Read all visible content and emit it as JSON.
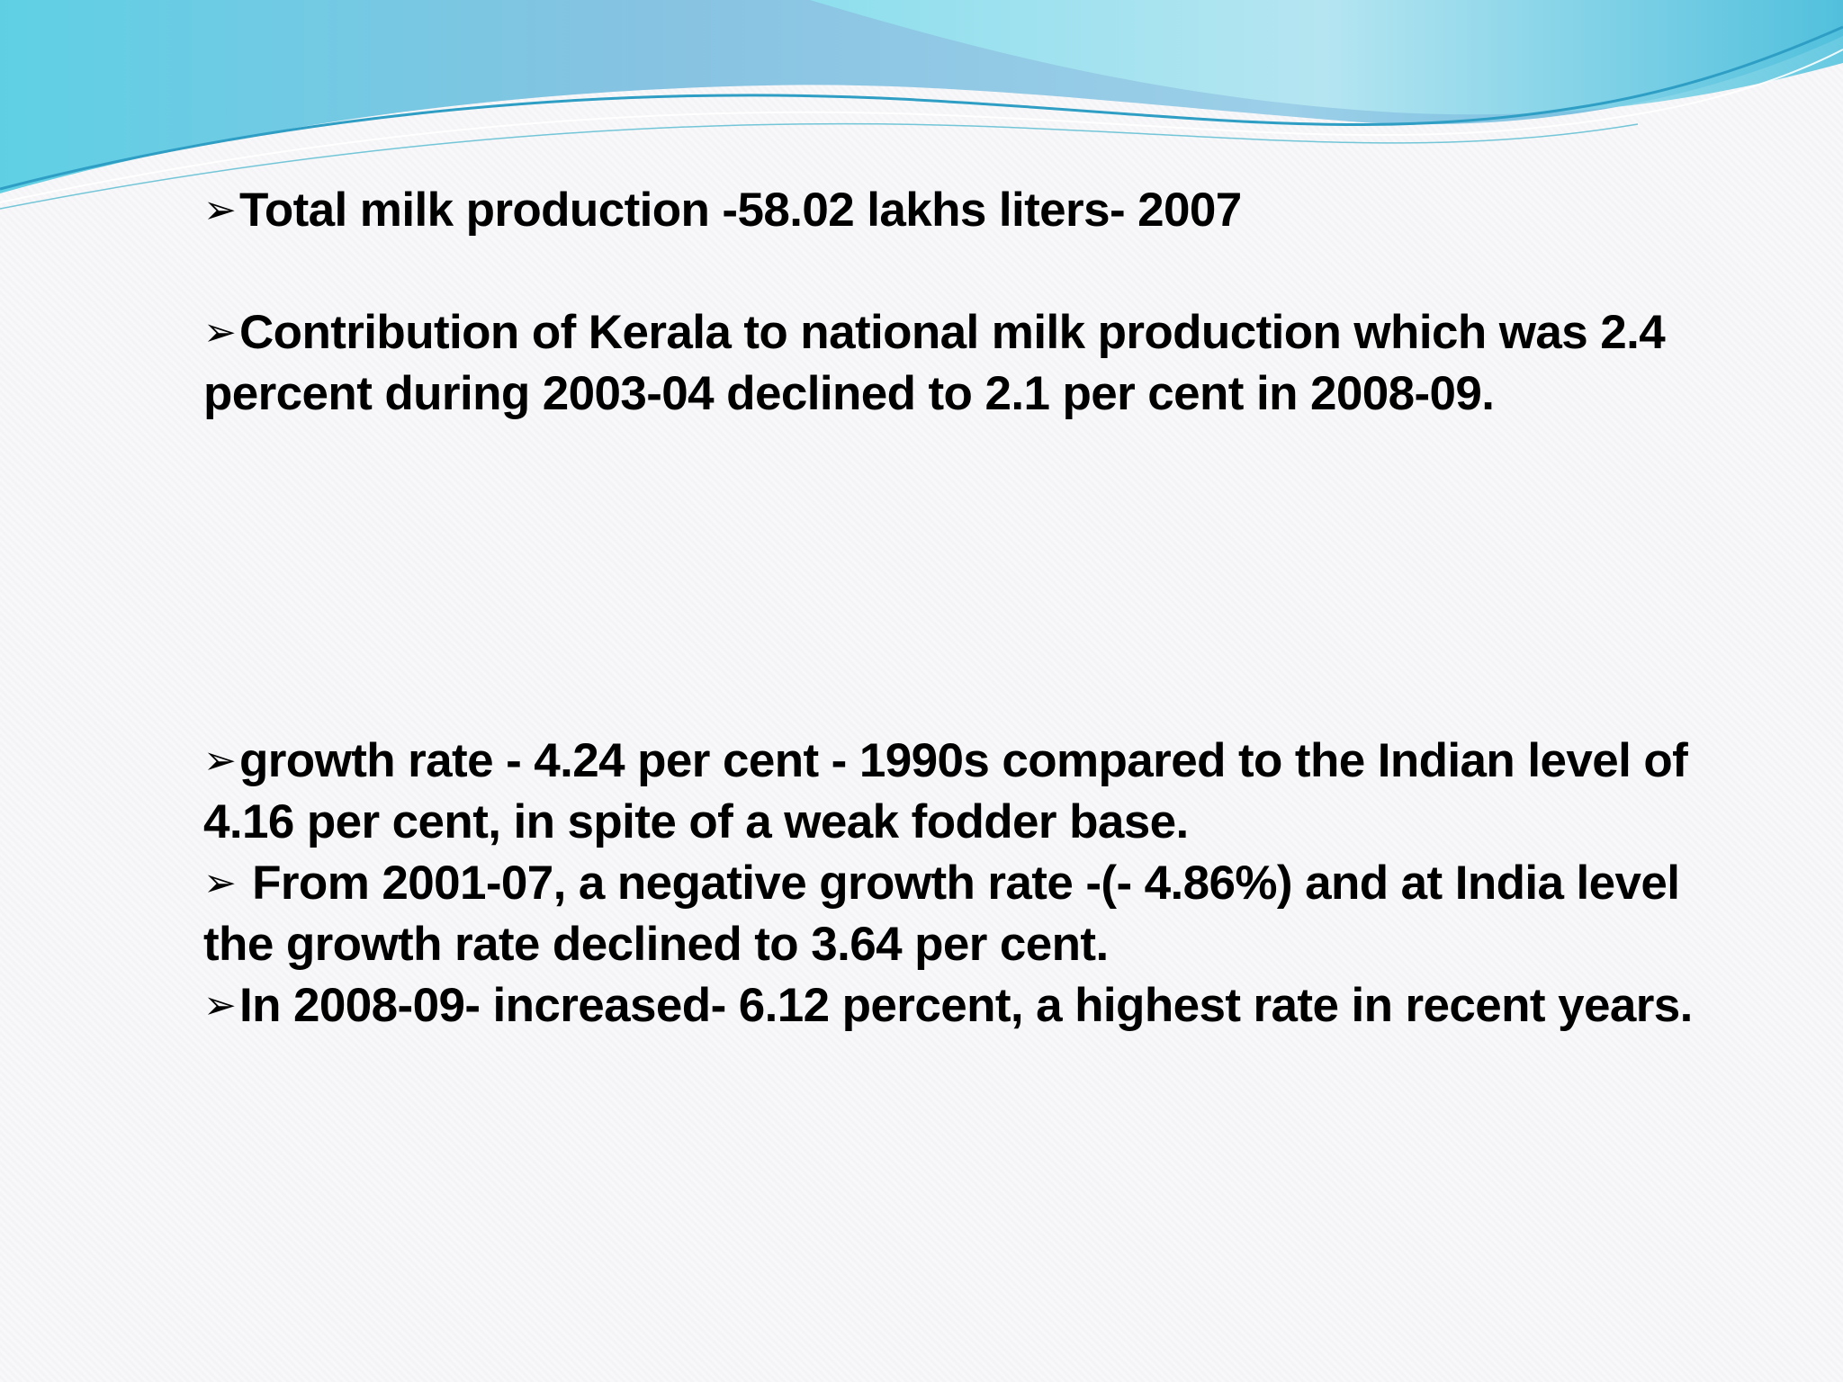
{
  "slide": {
    "bullet_glyph": "➢",
    "bullets": [
      {
        "text": "Total milk production -58.02 lakhs liters- 2007"
      },
      {
        "text": "Contribution of Kerala to national milk production which was 2.4 percent during 2003-04 declined to 2.1 per cent in 2008-09."
      },
      {
        "text": "growth rate - 4.24 per cent - 1990s compared to the Indian level of 4.16 per cent, in spite of a weak fodder base."
      },
      {
        "text": " From 2001-07, a negative growth rate -(- 4.86%) and at India level the growth rate declined to 3.64 per cent."
      },
      {
        "text": "In 2008-09- increased- 6.12 percent, a highest rate in recent years."
      }
    ]
  },
  "theme": {
    "wave_colors": [
      "#6ed3e6",
      "#8fc6e3",
      "#3aa9c9",
      "#b6e6f0"
    ],
    "text_color": "#000000"
  }
}
